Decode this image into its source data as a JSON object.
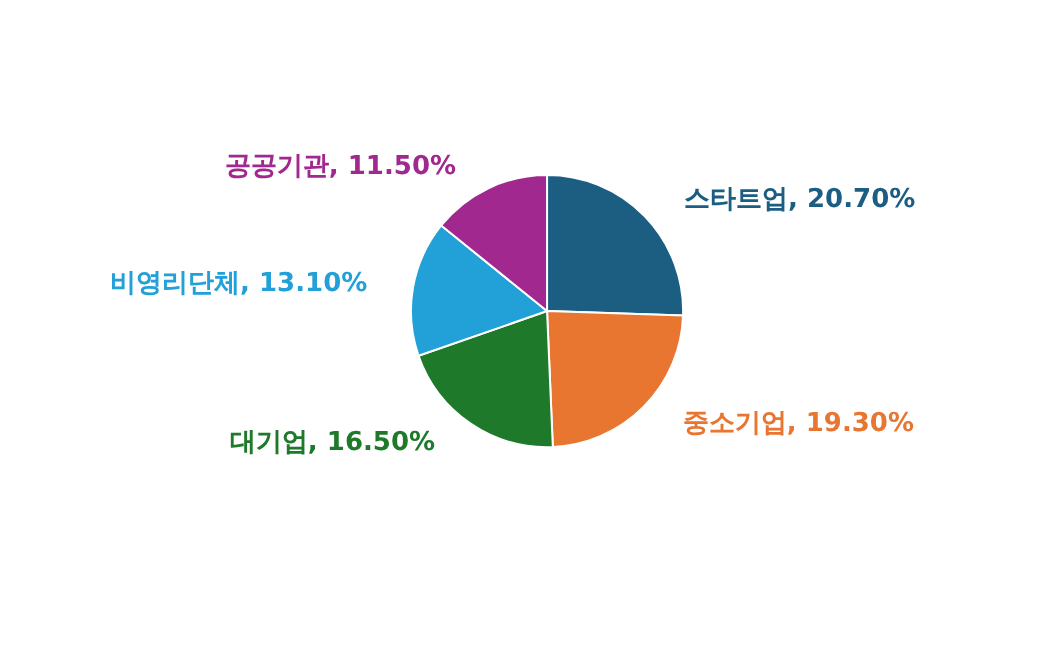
{
  "chart_data": {
    "type": "pie",
    "categories": [
      "스타트업",
      "중소기업",
      "대기업",
      "비영리단체",
      "공공기관"
    ],
    "values": [
      20.7,
      19.3,
      16.5,
      13.1,
      11.5
    ],
    "value_labels": [
      "20.70%",
      "19.30%",
      "16.50%",
      "13.10%",
      "11.50%"
    ],
    "colors": [
      "#1b5e82",
      "#e87530",
      "#1e7a2a",
      "#22a0d8",
      "#a0288f"
    ],
    "legend": false
  }
}
